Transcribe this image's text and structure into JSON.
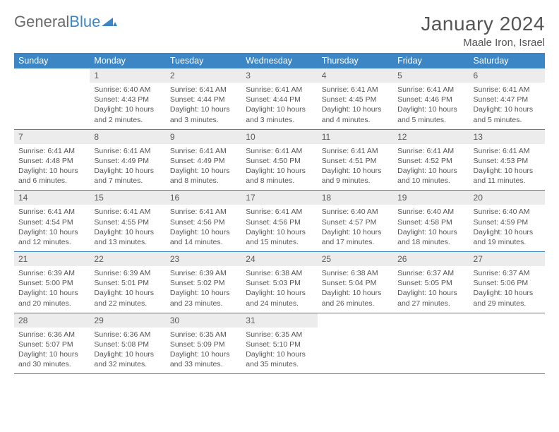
{
  "logo": {
    "text_a": "General",
    "text_b": "Blue",
    "chev_color": "#3d86c6",
    "text_color_a": "#6a6a6a"
  },
  "header": {
    "month": "January 2024",
    "location": "Maale Iron, Israel"
  },
  "style": {
    "header_bg": "#3d86c6",
    "header_fg": "#ffffff",
    "daynum_bg": "#ececec",
    "row_divider": "#3d86c6",
    "body_font_size": 10.5,
    "page_bg": "#ffffff"
  },
  "days_of_week": [
    "Sunday",
    "Monday",
    "Tuesday",
    "Wednesday",
    "Thursday",
    "Friday",
    "Saturday"
  ],
  "first_weekday_index": 1,
  "days": [
    {
      "n": 1,
      "sr": "6:40 AM",
      "ss": "4:43 PM",
      "dl": "10 hours and 2 minutes."
    },
    {
      "n": 2,
      "sr": "6:41 AM",
      "ss": "4:44 PM",
      "dl": "10 hours and 3 minutes."
    },
    {
      "n": 3,
      "sr": "6:41 AM",
      "ss": "4:44 PM",
      "dl": "10 hours and 3 minutes."
    },
    {
      "n": 4,
      "sr": "6:41 AM",
      "ss": "4:45 PM",
      "dl": "10 hours and 4 minutes."
    },
    {
      "n": 5,
      "sr": "6:41 AM",
      "ss": "4:46 PM",
      "dl": "10 hours and 5 minutes."
    },
    {
      "n": 6,
      "sr": "6:41 AM",
      "ss": "4:47 PM",
      "dl": "10 hours and 5 minutes."
    },
    {
      "n": 7,
      "sr": "6:41 AM",
      "ss": "4:48 PM",
      "dl": "10 hours and 6 minutes."
    },
    {
      "n": 8,
      "sr": "6:41 AM",
      "ss": "4:49 PM",
      "dl": "10 hours and 7 minutes."
    },
    {
      "n": 9,
      "sr": "6:41 AM",
      "ss": "4:49 PM",
      "dl": "10 hours and 8 minutes."
    },
    {
      "n": 10,
      "sr": "6:41 AM",
      "ss": "4:50 PM",
      "dl": "10 hours and 8 minutes."
    },
    {
      "n": 11,
      "sr": "6:41 AM",
      "ss": "4:51 PM",
      "dl": "10 hours and 9 minutes."
    },
    {
      "n": 12,
      "sr": "6:41 AM",
      "ss": "4:52 PM",
      "dl": "10 hours and 10 minutes."
    },
    {
      "n": 13,
      "sr": "6:41 AM",
      "ss": "4:53 PM",
      "dl": "10 hours and 11 minutes."
    },
    {
      "n": 14,
      "sr": "6:41 AM",
      "ss": "4:54 PM",
      "dl": "10 hours and 12 minutes."
    },
    {
      "n": 15,
      "sr": "6:41 AM",
      "ss": "4:55 PM",
      "dl": "10 hours and 13 minutes."
    },
    {
      "n": 16,
      "sr": "6:41 AM",
      "ss": "4:56 PM",
      "dl": "10 hours and 14 minutes."
    },
    {
      "n": 17,
      "sr": "6:41 AM",
      "ss": "4:56 PM",
      "dl": "10 hours and 15 minutes."
    },
    {
      "n": 18,
      "sr": "6:40 AM",
      "ss": "4:57 PM",
      "dl": "10 hours and 17 minutes."
    },
    {
      "n": 19,
      "sr": "6:40 AM",
      "ss": "4:58 PM",
      "dl": "10 hours and 18 minutes."
    },
    {
      "n": 20,
      "sr": "6:40 AM",
      "ss": "4:59 PM",
      "dl": "10 hours and 19 minutes."
    },
    {
      "n": 21,
      "sr": "6:39 AM",
      "ss": "5:00 PM",
      "dl": "10 hours and 20 minutes."
    },
    {
      "n": 22,
      "sr": "6:39 AM",
      "ss": "5:01 PM",
      "dl": "10 hours and 22 minutes."
    },
    {
      "n": 23,
      "sr": "6:39 AM",
      "ss": "5:02 PM",
      "dl": "10 hours and 23 minutes."
    },
    {
      "n": 24,
      "sr": "6:38 AM",
      "ss": "5:03 PM",
      "dl": "10 hours and 24 minutes."
    },
    {
      "n": 25,
      "sr": "6:38 AM",
      "ss": "5:04 PM",
      "dl": "10 hours and 26 minutes."
    },
    {
      "n": 26,
      "sr": "6:37 AM",
      "ss": "5:05 PM",
      "dl": "10 hours and 27 minutes."
    },
    {
      "n": 27,
      "sr": "6:37 AM",
      "ss": "5:06 PM",
      "dl": "10 hours and 29 minutes."
    },
    {
      "n": 28,
      "sr": "6:36 AM",
      "ss": "5:07 PM",
      "dl": "10 hours and 30 minutes."
    },
    {
      "n": 29,
      "sr": "6:36 AM",
      "ss": "5:08 PM",
      "dl": "10 hours and 32 minutes."
    },
    {
      "n": 30,
      "sr": "6:35 AM",
      "ss": "5:09 PM",
      "dl": "10 hours and 33 minutes."
    },
    {
      "n": 31,
      "sr": "6:35 AM",
      "ss": "5:10 PM",
      "dl": "10 hours and 35 minutes."
    }
  ],
  "labels": {
    "sunrise": "Sunrise:",
    "sunset": "Sunset:",
    "daylight": "Daylight:"
  }
}
